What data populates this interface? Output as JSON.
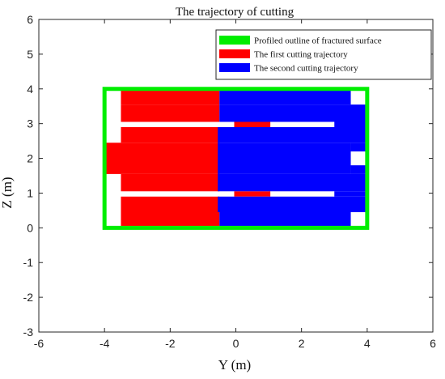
{
  "chart_data": {
    "type": "area",
    "title": "The trajectory of cutting",
    "xlabel": "Y (m)",
    "ylabel": "Z (m)",
    "xlim": [
      -6,
      6
    ],
    "ylim": [
      -3,
      6
    ],
    "xticks": [
      -6,
      -4,
      -2,
      0,
      2,
      4,
      6
    ],
    "yticks": [
      -3,
      -2,
      -1,
      0,
      1,
      2,
      3,
      4,
      5,
      6
    ],
    "grid": false,
    "legend_position": "top-right",
    "series": [
      {
        "name": "Profiled outline of fractured surface",
        "color": "#00ee00",
        "kind": "outline",
        "polygons": [
          [
            [
              -4,
              0
            ],
            [
              4,
              0
            ],
            [
              4,
              4
            ],
            [
              -4,
              4
            ]
          ]
        ]
      },
      {
        "name": "The first cutting trajectory",
        "color": "#ff0000",
        "kind": "fill",
        "polygons": [
          [
            [
              -3.5,
              3.55
            ],
            [
              -0.5,
              3.55
            ],
            [
              -0.5,
              3.95
            ],
            [
              -3.5,
              3.95
            ]
          ],
          [
            [
              -3.5,
              3.05
            ],
            [
              -0.5,
              3.05
            ],
            [
              -0.5,
              3.55
            ],
            [
              -3.5,
              3.55
            ]
          ],
          [
            [
              -3.5,
              2.45
            ],
            [
              -0.5,
              2.45
            ],
            [
              -0.5,
              2.9
            ],
            [
              -3.5,
              2.9
            ]
          ],
          [
            [
              -4.05,
              1.55
            ],
            [
              -0.5,
              1.55
            ],
            [
              -0.5,
              2.45
            ],
            [
              -4.05,
              2.45
            ]
          ],
          [
            [
              -3.5,
              1.05
            ],
            [
              -0.5,
              1.05
            ],
            [
              -0.5,
              1.55
            ],
            [
              -3.5,
              1.55
            ]
          ],
          [
            [
              -3.5,
              0.45
            ],
            [
              -0.5,
              0.45
            ],
            [
              -0.5,
              0.9
            ],
            [
              -3.5,
              0.9
            ]
          ],
          [
            [
              -3.5,
              0.05
            ],
            [
              -0.5,
              0.05
            ],
            [
              -0.5,
              0.45
            ],
            [
              -3.5,
              0.45
            ]
          ],
          [
            [
              -0.05,
              2.9
            ],
            [
              1.05,
              2.9
            ],
            [
              1.05,
              3.05
            ],
            [
              -0.05,
              3.05
            ]
          ],
          [
            [
              -0.05,
              0.9
            ],
            [
              1.05,
              0.9
            ],
            [
              1.05,
              1.05
            ],
            [
              -0.05,
              1.05
            ]
          ]
        ]
      },
      {
        "name": "The second cutting trajectory",
        "color": "#0000ff",
        "kind": "fill",
        "polygons": [
          [
            [
              -0.5,
              3.55
            ],
            [
              3.5,
              3.55
            ],
            [
              3.5,
              3.95
            ],
            [
              -0.5,
              3.95
            ]
          ],
          [
            [
              -0.5,
              3.05
            ],
            [
              4.05,
              3.05
            ],
            [
              4.05,
              3.55
            ],
            [
              -0.5,
              3.55
            ]
          ],
          [
            [
              -0.55,
              2.45
            ],
            [
              3.95,
              2.45
            ],
            [
              3.95,
              2.9
            ],
            [
              -0.55,
              2.9
            ]
          ],
          [
            [
              -0.55,
              1.55
            ],
            [
              3.5,
              1.55
            ],
            [
              3.5,
              2.45
            ],
            [
              -0.55,
              2.45
            ]
          ],
          [
            [
              -0.55,
              1.05
            ],
            [
              3.95,
              1.05
            ],
            [
              3.95,
              1.55
            ],
            [
              -0.55,
              1.55
            ]
          ],
          [
            [
              -0.55,
              0.45
            ],
            [
              4.05,
              0.45
            ],
            [
              4.05,
              0.9
            ],
            [
              -0.55,
              0.9
            ]
          ],
          [
            [
              -0.5,
              0.05
            ],
            [
              3.5,
              0.05
            ],
            [
              3.5,
              0.45
            ],
            [
              -0.5,
              0.45
            ]
          ],
          [
            [
              3.0,
              2.9
            ],
            [
              4.05,
              2.9
            ],
            [
              4.05,
              3.05
            ],
            [
              3.0,
              3.05
            ]
          ],
          [
            [
              3.0,
              0.9
            ],
            [
              4.05,
              0.9
            ],
            [
              4.05,
              1.05
            ],
            [
              3.0,
              1.05
            ]
          ],
          [
            [
              3.5,
              2.2
            ],
            [
              3.95,
              2.2
            ],
            [
              3.95,
              2.45
            ],
            [
              3.5,
              2.45
            ]
          ],
          [
            [
              3.5,
              1.55
            ],
            [
              3.95,
              1.55
            ],
            [
              3.95,
              1.8
            ],
            [
              3.5,
              1.8
            ]
          ]
        ]
      }
    ]
  }
}
